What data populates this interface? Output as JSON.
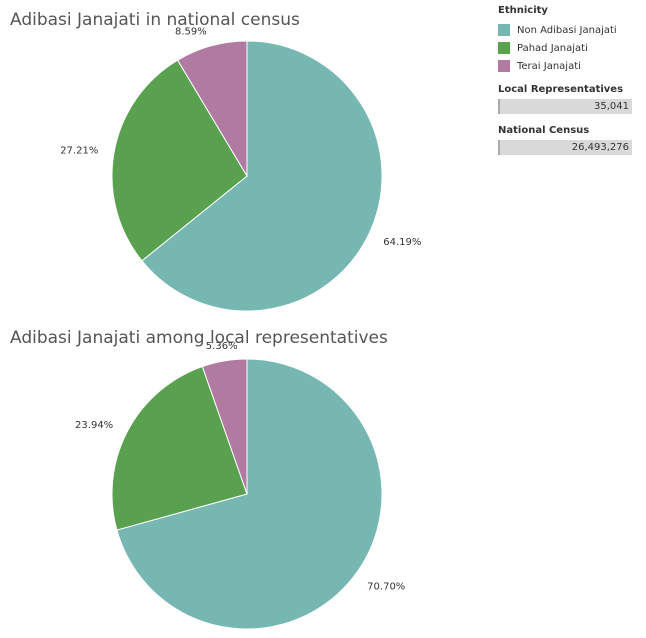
{
  "legend": {
    "title": "Ethnicity",
    "items": [
      {
        "label": "Non Adibasi Janajati",
        "color": "#76b7b2"
      },
      {
        "label": "Pahad Janajati",
        "color": "#59a14f"
      },
      {
        "label": "Terai Janajati",
        "color": "#b07aa1"
      }
    ]
  },
  "filters": {
    "local": {
      "title": "Local Representatives",
      "value": "35,041"
    },
    "national": {
      "title": "National Census",
      "value": "26,493,276"
    }
  },
  "chart_data": [
    {
      "type": "pie",
      "title": "Adibasi Janajati in national census",
      "categories": [
        "Non Adibasi Janajati",
        "Pahad Janajati",
        "Terai Janajati"
      ],
      "values": [
        64.19,
        27.21,
        8.59
      ],
      "labels": [
        "64.19%",
        "27.21%",
        "8.59%"
      ],
      "colors": [
        "#76b7b2",
        "#59a14f",
        "#b07aa1"
      ]
    },
    {
      "type": "pie",
      "title": "Adibasi Janajati among local representatives",
      "categories": [
        "Non Adibasi Janajati",
        "Pahad Janajati",
        "Terai Janajati"
      ],
      "values": [
        70.7,
        23.94,
        5.36
      ],
      "labels": [
        "70.70%",
        "23.94%",
        "5.36%"
      ],
      "colors": [
        "#76b7b2",
        "#59a14f",
        "#b07aa1"
      ]
    }
  ]
}
